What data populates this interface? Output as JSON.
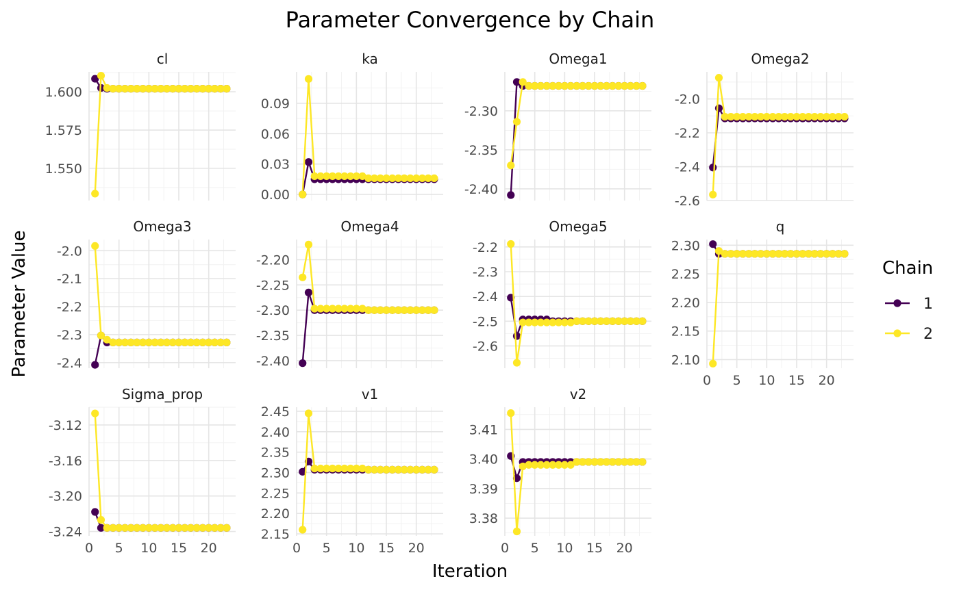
{
  "chart_data": {
    "type": "line",
    "title": "Parameter Convergence by Chain",
    "xlabel": "Iteration",
    "ylabel": "Parameter Value",
    "grid": true,
    "legend": {
      "title": "Chain",
      "position": "right",
      "entries": [
        {
          "label": "1",
          "color": "#440154"
        },
        {
          "label": "2",
          "color": "#FDE725"
        }
      ]
    },
    "x_ticks": [
      0,
      5,
      10,
      15,
      20
    ],
    "xlim": [
      0,
      24.5
    ],
    "series_colors": {
      "1": "#440154",
      "2": "#FDE725"
    },
    "panels": [
      {
        "title": "cl",
        "ylim": [
          1.529,
          1.613
        ],
        "yticks": [
          1.55,
          1.575,
          1.6
        ],
        "tick_decimals": 3,
        "series": [
          {
            "name": "1",
            "values": [
              1.6085,
              1.6025,
              1.602,
              1.602,
              1.602,
              1.602,
              1.602,
              1.602,
              1.602,
              1.602,
              1.602,
              1.602,
              1.602,
              1.602,
              1.602,
              1.602,
              1.602,
              1.602,
              1.602,
              1.602,
              1.602,
              1.602,
              1.602
            ]
          },
          {
            "name": "2",
            "values": [
              1.5335,
              1.6105,
              1.6025,
              1.602,
              1.602,
              1.602,
              1.602,
              1.602,
              1.602,
              1.602,
              1.602,
              1.602,
              1.602,
              1.602,
              1.602,
              1.602,
              1.602,
              1.602,
              1.602,
              1.602,
              1.602,
              1.602,
              1.602
            ]
          }
        ]
      },
      {
        "title": "ka",
        "ylim": [
          -0.006,
          0.121
        ],
        "yticks": [
          0.0,
          0.03,
          0.06,
          0.09
        ],
        "tick_decimals": 2,
        "series": [
          {
            "name": "1",
            "values": [
              0.0,
              0.032,
              0.015,
              0.015,
              0.015,
              0.015,
              0.015,
              0.015,
              0.015,
              0.015,
              0.015,
              0.015,
              0.015,
              0.015,
              0.015,
              0.015,
              0.015,
              0.015,
              0.015,
              0.015,
              0.015,
              0.015,
              0.015
            ]
          },
          {
            "name": "2",
            "values": [
              0.0,
              0.114,
              0.018,
              0.018,
              0.018,
              0.018,
              0.018,
              0.018,
              0.018,
              0.018,
              0.018,
              0.016,
              0.016,
              0.016,
              0.016,
              0.016,
              0.016,
              0.016,
              0.016,
              0.016,
              0.016,
              0.016,
              0.016
            ]
          }
        ]
      },
      {
        "title": "Omega1",
        "ylim": [
          -2.415,
          -2.25
        ],
        "yticks": [
          -2.4,
          -2.35,
          -2.3
        ],
        "tick_decimals": 2,
        "series": [
          {
            "name": "1",
            "values": [
              -2.408,
              -2.263,
              -2.268,
              -2.268,
              -2.268,
              -2.268,
              -2.268,
              -2.268,
              -2.268,
              -2.268,
              -2.268,
              -2.268,
              -2.268,
              -2.268,
              -2.268,
              -2.268,
              -2.268,
              -2.268,
              -2.268,
              -2.268,
              -2.268,
              -2.268,
              -2.268
            ]
          },
          {
            "name": "2",
            "values": [
              -2.37,
              -2.314,
              -2.263,
              -2.268,
              -2.268,
              -2.268,
              -2.268,
              -2.268,
              -2.268,
              -2.268,
              -2.268,
              -2.268,
              -2.268,
              -2.268,
              -2.268,
              -2.268,
              -2.268,
              -2.268,
              -2.268,
              -2.268,
              -2.268,
              -2.268,
              -2.268
            ]
          }
        ]
      },
      {
        "title": "Omega2",
        "ylim": [
          -2.6,
          -1.84
        ],
        "yticks": [
          -2.6,
          -2.4,
          -2.2,
          -2.0
        ],
        "tick_decimals": 1,
        "series": [
          {
            "name": "1",
            "values": [
              -2.405,
              -2.055,
              -2.115,
              -2.115,
              -2.115,
              -2.115,
              -2.115,
              -2.115,
              -2.115,
              -2.115,
              -2.115,
              -2.115,
              -2.115,
              -2.115,
              -2.115,
              -2.115,
              -2.115,
              -2.115,
              -2.115,
              -2.115,
              -2.115,
              -2.115,
              -2.115
            ]
          },
          {
            "name": "2",
            "values": [
              -2.565,
              -1.875,
              -2.105,
              -2.105,
              -2.105,
              -2.105,
              -2.105,
              -2.105,
              -2.105,
              -2.105,
              -2.105,
              -2.105,
              -2.105,
              -2.105,
              -2.105,
              -2.105,
              -2.105,
              -2.105,
              -2.105,
              -2.105,
              -2.105,
              -2.105,
              -2.105
            ]
          }
        ]
      },
      {
        "title": "Omega3",
        "ylim": [
          -2.42,
          -1.96
        ],
        "yticks": [
          -2.4,
          -2.3,
          -2.2,
          -2.1,
          -2.0
        ],
        "tick_decimals": 1,
        "series": [
          {
            "name": "1",
            "values": [
              -2.408,
              -2.303,
              -2.328,
              -2.328,
              -2.328,
              -2.328,
              -2.328,
              -2.328,
              -2.328,
              -2.328,
              -2.328,
              -2.328,
              -2.328,
              -2.328,
              -2.328,
              -2.328,
              -2.328,
              -2.328,
              -2.328,
              -2.328,
              -2.328,
              -2.328,
              -2.328
            ]
          },
          {
            "name": "2",
            "values": [
              -1.983,
              -2.303,
              -2.318,
              -2.328,
              -2.328,
              -2.328,
              -2.328,
              -2.328,
              -2.328,
              -2.328,
              -2.328,
              -2.328,
              -2.328,
              -2.328,
              -2.328,
              -2.328,
              -2.328,
              -2.328,
              -2.328,
              -2.328,
              -2.328,
              -2.328,
              -2.328
            ]
          }
        ]
      },
      {
        "title": "Omega4",
        "ylim": [
          -2.415,
          -2.16
        ],
        "yticks": [
          -2.4,
          -2.35,
          -2.3,
          -2.25,
          -2.2
        ],
        "tick_decimals": 2,
        "series": [
          {
            "name": "1",
            "values": [
              -2.405,
              -2.265,
              -2.3,
              -2.3,
              -2.3,
              -2.3,
              -2.3,
              -2.3,
              -2.3,
              -2.3,
              -2.3,
              -2.3,
              -2.3,
              -2.3,
              -2.3,
              -2.3,
              -2.3,
              -2.3,
              -2.3,
              -2.3,
              -2.3,
              -2.3,
              -2.3
            ]
          },
          {
            "name": "2",
            "values": [
              -2.235,
              -2.17,
              -2.297,
              -2.297,
              -2.297,
              -2.297,
              -2.297,
              -2.297,
              -2.297,
              -2.297,
              -2.297,
              -2.3,
              -2.3,
              -2.3,
              -2.3,
              -2.3,
              -2.3,
              -2.3,
              -2.3,
              -2.3,
              -2.3,
              -2.3,
              -2.3
            ]
          }
        ]
      },
      {
        "title": "Omega5",
        "ylim": [
          -2.69,
          -2.17
        ],
        "yticks": [
          -2.6,
          -2.5,
          -2.4,
          -2.3,
          -2.2
        ],
        "tick_decimals": 1,
        "series": [
          {
            "name": "1",
            "values": [
              -2.405,
              -2.56,
              -2.493,
              -2.493,
              -2.493,
              -2.493,
              -2.493,
              -2.5,
              -2.5,
              -2.5,
              -2.5,
              -2.5,
              -2.5,
              -2.5,
              -2.5,
              -2.5,
              -2.5,
              -2.5,
              -2.5,
              -2.5,
              -2.5,
              -2.5,
              -2.5
            ]
          },
          {
            "name": "2",
            "values": [
              -2.188,
              -2.668,
              -2.505,
              -2.505,
              -2.505,
              -2.505,
              -2.505,
              -2.505,
              -2.505,
              -2.505,
              -2.505,
              -2.5,
              -2.5,
              -2.5,
              -2.5,
              -2.5,
              -2.5,
              -2.5,
              -2.5,
              -2.5,
              -2.5,
              -2.5,
              -2.5
            ]
          }
        ]
      },
      {
        "title": "q",
        "ylim": [
          2.085,
          2.31
        ],
        "yticks": [
          2.1,
          2.15,
          2.2,
          2.25,
          2.3
        ],
        "tick_decimals": 2,
        "series": [
          {
            "name": "1",
            "values": [
              2.302,
              2.285,
              2.285,
              2.285,
              2.285,
              2.285,
              2.285,
              2.285,
              2.285,
              2.285,
              2.285,
              2.285,
              2.285,
              2.285,
              2.285,
              2.285,
              2.285,
              2.285,
              2.285,
              2.285,
              2.285,
              2.285,
              2.285
            ]
          },
          {
            "name": "2",
            "values": [
              2.093,
              2.29,
              2.285,
              2.285,
              2.285,
              2.285,
              2.285,
              2.285,
              2.285,
              2.285,
              2.285,
              2.285,
              2.285,
              2.285,
              2.285,
              2.285,
              2.285,
              2.285,
              2.285,
              2.285,
              2.285,
              2.285,
              2.285
            ]
          }
        ]
      },
      {
        "title": "Sigma_prop",
        "ylim": [
          -3.245,
          -3.1
        ],
        "yticks": [
          -3.24,
          -3.2,
          -3.16,
          -3.12
        ],
        "tick_decimals": 2,
        "series": [
          {
            "name": "1",
            "values": [
              -3.218,
              -3.236,
              -3.236,
              -3.236,
              -3.236,
              -3.236,
              -3.236,
              -3.236,
              -3.236,
              -3.236,
              -3.236,
              -3.236,
              -3.236,
              -3.236,
              -3.236,
              -3.236,
              -3.236,
              -3.236,
              -3.236,
              -3.236,
              -3.236,
              -3.236,
              -3.236
            ]
          },
          {
            "name": "2",
            "values": [
              -3.107,
              -3.227,
              -3.236,
              -3.236,
              -3.236,
              -3.236,
              -3.236,
              -3.236,
              -3.236,
              -3.236,
              -3.236,
              -3.236,
              -3.236,
              -3.236,
              -3.236,
              -3.236,
              -3.236,
              -3.236,
              -3.236,
              -3.236,
              -3.236,
              -3.236,
              -3.236
            ]
          }
        ]
      },
      {
        "title": "v1",
        "ylim": [
          2.145,
          2.46
        ],
        "yticks": [
          2.15,
          2.2,
          2.25,
          2.3,
          2.35,
          2.4,
          2.45
        ],
        "tick_decimals": 2,
        "series": [
          {
            "name": "1",
            "values": [
              2.302,
              2.327,
              2.307,
              2.307,
              2.307,
              2.307,
              2.307,
              2.307,
              2.307,
              2.307,
              2.307,
              2.307,
              2.307,
              2.307,
              2.307,
              2.307,
              2.307,
              2.307,
              2.307,
              2.307,
              2.307,
              2.307,
              2.307
            ]
          },
          {
            "name": "2",
            "values": [
              2.16,
              2.445,
              2.31,
              2.31,
              2.31,
              2.31,
              2.31,
              2.31,
              2.31,
              2.31,
              2.31,
              2.307,
              2.307,
              2.307,
              2.307,
              2.307,
              2.307,
              2.307,
              2.307,
              2.307,
              2.307,
              2.307,
              2.307
            ]
          }
        ]
      },
      {
        "title": "v2",
        "ylim": [
          3.374,
          3.4175
        ],
        "yticks": [
          3.38,
          3.39,
          3.4,
          3.41
        ],
        "tick_decimals": 2,
        "series": [
          {
            "name": "1",
            "values": [
              3.401,
              3.3935,
              3.399,
              3.399,
              3.399,
              3.399,
              3.399,
              3.399,
              3.399,
              3.399,
              3.399,
              3.399,
              3.399,
              3.399,
              3.399,
              3.399,
              3.399,
              3.399,
              3.399,
              3.399,
              3.399,
              3.399,
              3.399
            ]
          },
          {
            "name": "2",
            "values": [
              3.4155,
              3.3755,
              3.3975,
              3.398,
              3.398,
              3.398,
              3.398,
              3.398,
              3.398,
              3.398,
              3.398,
              3.399,
              3.399,
              3.399,
              3.399,
              3.399,
              3.399,
              3.399,
              3.399,
              3.399,
              3.399,
              3.399,
              3.399
            ]
          }
        ]
      }
    ]
  }
}
